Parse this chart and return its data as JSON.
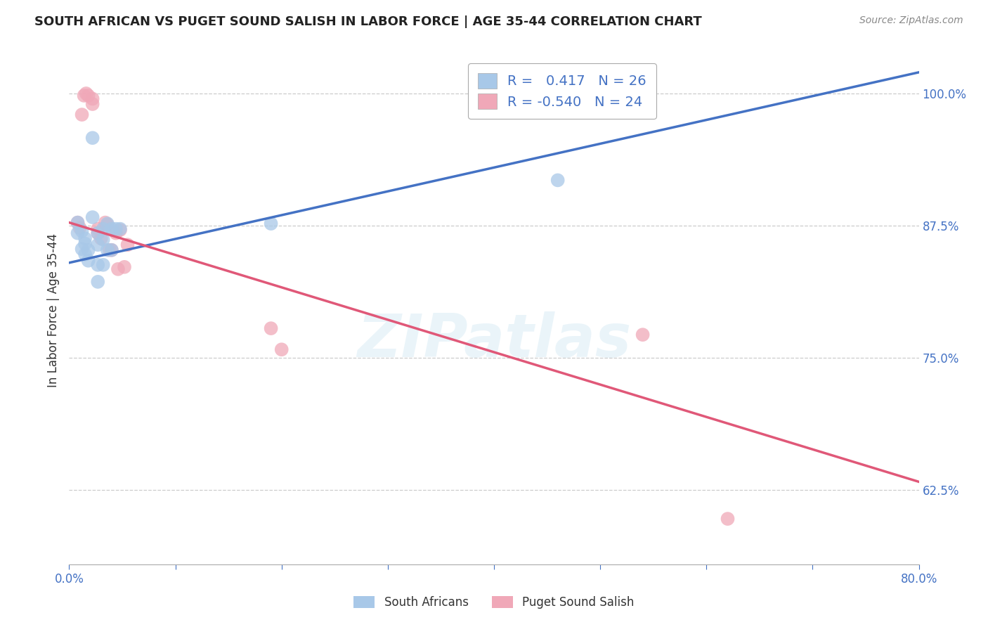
{
  "title": "SOUTH AFRICAN VS PUGET SOUND SALISH IN LABOR FORCE | AGE 35-44 CORRELATION CHART",
  "source": "Source: ZipAtlas.com",
  "ylabel": "In Labor Force | Age 35-44",
  "xlim": [
    0.0,
    0.8
  ],
  "ylim": [
    0.555,
    1.035
  ],
  "xticks": [
    0.0,
    0.1,
    0.2,
    0.3,
    0.4,
    0.5,
    0.6,
    0.7,
    0.8
  ],
  "xticklabels": [
    "0.0%",
    "",
    "",
    "",
    "",
    "",
    "",
    "",
    "80.0%"
  ],
  "ytick_positions": [
    0.625,
    0.75,
    0.875,
    1.0
  ],
  "yticklabels": [
    "62.5%",
    "75.0%",
    "87.5%",
    "100.0%"
  ],
  "blue_R": "0.417",
  "blue_N": 26,
  "pink_R": "-0.540",
  "pink_N": 24,
  "blue_color": "#A8C8E8",
  "pink_color": "#F0A8B8",
  "blue_line_color": "#4472C4",
  "pink_line_color": "#E05878",
  "watermark_text": "ZIPatlas",
  "legend_label_blue": "South Africans",
  "legend_label_pink": "Puget Sound Salish",
  "blue_points_x": [
    0.008,
    0.008,
    0.012,
    0.012,
    0.015,
    0.015,
    0.015,
    0.018,
    0.018,
    0.022,
    0.022,
    0.027,
    0.027,
    0.027,
    0.027,
    0.032,
    0.032,
    0.032,
    0.036,
    0.036,
    0.04,
    0.04,
    0.044,
    0.048,
    0.19,
    0.46
  ],
  "blue_points_y": [
    0.878,
    0.868,
    0.87,
    0.853,
    0.863,
    0.858,
    0.848,
    0.852,
    0.842,
    0.958,
    0.883,
    0.868,
    0.857,
    0.838,
    0.822,
    0.872,
    0.862,
    0.838,
    0.877,
    0.852,
    0.872,
    0.852,
    0.872,
    0.872,
    0.877,
    0.918
  ],
  "pink_points_x": [
    0.008,
    0.01,
    0.012,
    0.014,
    0.016,
    0.018,
    0.022,
    0.022,
    0.027,
    0.027,
    0.03,
    0.034,
    0.036,
    0.038,
    0.04,
    0.044,
    0.046,
    0.048,
    0.052,
    0.055,
    0.19,
    0.2,
    0.54,
    0.62
  ],
  "pink_points_y": [
    0.878,
    0.873,
    0.98,
    0.998,
    1.0,
    0.998,
    0.99,
    0.995,
    0.872,
    0.868,
    0.863,
    0.878,
    0.876,
    0.852,
    0.852,
    0.868,
    0.834,
    0.871,
    0.836,
    0.857,
    0.778,
    0.758,
    0.772,
    0.598
  ],
  "blue_trend_x": [
    0.0,
    0.8
  ],
  "blue_trend_y": [
    0.84,
    1.02
  ],
  "pink_trend_x": [
    0.0,
    0.8
  ],
  "pink_trend_y": [
    0.878,
    0.633
  ]
}
